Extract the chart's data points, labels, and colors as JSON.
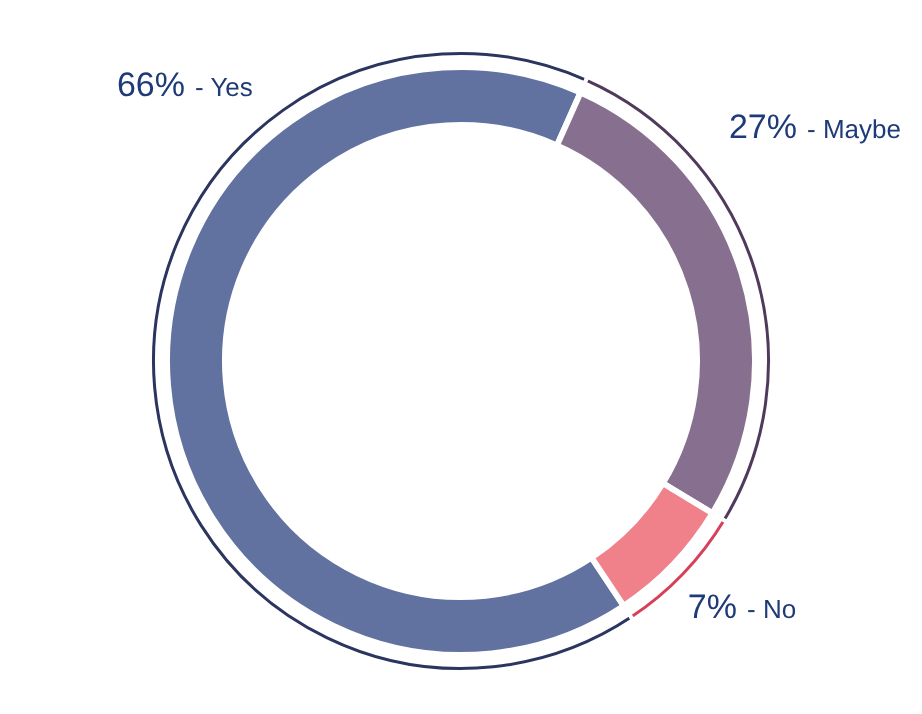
{
  "chart_data": {
    "type": "donut",
    "categories": [
      "- Yes",
      "- Maybe",
      "- No"
    ],
    "series": [
      {
        "values": [
          66,
          27,
          7
        ],
        "colors": [
          "#6272a0",
          "#87708f",
          "#f0808a"
        ]
      },
      {
        "values": [
          66,
          27,
          7
        ],
        "colors": [
          "#2c3560",
          "#4f3a5c",
          "#d8405a"
        ]
      }
    ],
    "value_labels": [
      "66%",
      "27%",
      "7%"
    ]
  }
}
